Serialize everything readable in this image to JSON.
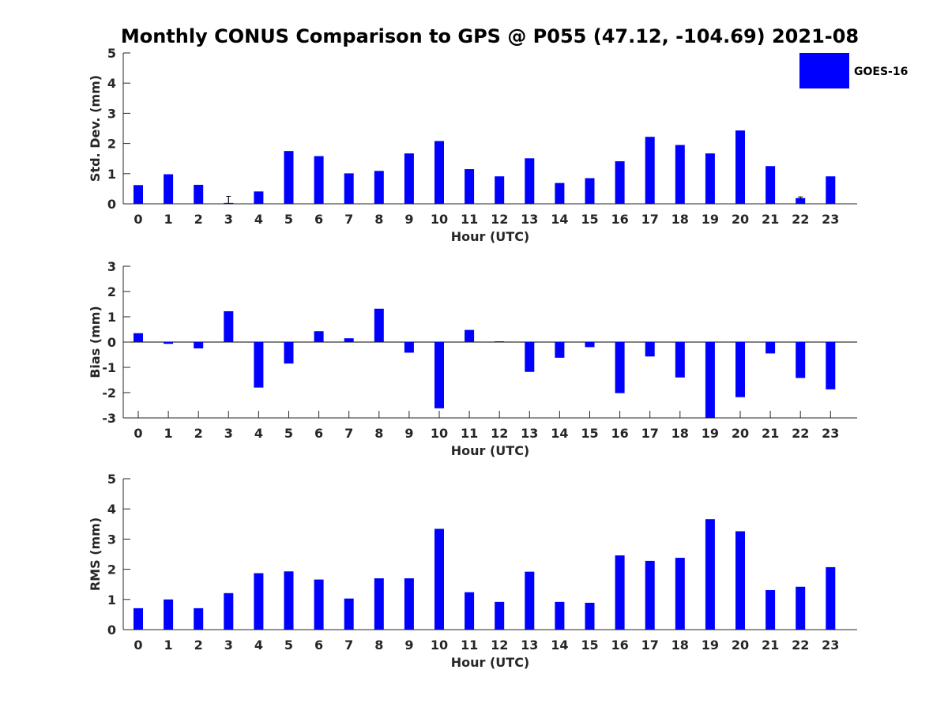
{
  "figure": {
    "title": "Monthly CONUS Comparison to GPS @ P055 (47.12, -104.69) 2021-08",
    "legend": {
      "label": "GOES-16",
      "color": "#0000ff",
      "placement": "top-right"
    }
  },
  "chart_data": [
    {
      "type": "bar",
      "xlabel": "Hour (UTC)",
      "ylabel": "Std. Dev. (mm)",
      "ylim": [
        0,
        5
      ],
      "yticks": [
        0,
        1,
        2,
        3,
        4,
        5
      ],
      "categories": [
        "0",
        "1",
        "2",
        "3",
        "4",
        "5",
        "6",
        "7",
        "8",
        "9",
        "10",
        "11",
        "12",
        "13",
        "14",
        "15",
        "16",
        "17",
        "18",
        "19",
        "20",
        "21",
        "22",
        "23"
      ],
      "series": [
        {
          "name": "GOES-16",
          "color": "#0000ff",
          "values": [
            0.62,
            0.98,
            0.63,
            0.03,
            0.41,
            1.75,
            1.58,
            1.01,
            1.09,
            1.67,
            2.08,
            1.15,
            0.91,
            1.51,
            0.69,
            0.85,
            1.41,
            2.22,
            1.95,
            1.67,
            2.43,
            1.25,
            0.19,
            0.91
          ]
        }
      ],
      "error_bars": [
        {
          "category": "3",
          "half_width": 0.22
        },
        {
          "category": "22",
          "half_width": 0.04
        }
      ],
      "grid": false
    },
    {
      "type": "bar",
      "xlabel": "Hour (UTC)",
      "ylabel": "Bias (mm)",
      "ylim": [
        -3,
        3
      ],
      "yticks": [
        -3,
        -2,
        -1,
        0,
        1,
        2,
        3
      ],
      "zero_line": true,
      "categories": [
        "0",
        "1",
        "2",
        "3",
        "4",
        "5",
        "6",
        "7",
        "8",
        "9",
        "10",
        "11",
        "12",
        "13",
        "14",
        "15",
        "16",
        "17",
        "18",
        "19",
        "20",
        "21",
        "22",
        "23"
      ],
      "series": [
        {
          "name": "GOES-16",
          "color": "#0000ff",
          "values": [
            0.35,
            -0.07,
            -0.25,
            1.22,
            -1.8,
            -0.85,
            0.43,
            0.15,
            1.32,
            -0.42,
            -2.62,
            0.48,
            0.03,
            -1.18,
            -0.62,
            -0.2,
            -2.02,
            -0.57,
            -1.4,
            -3.0,
            -2.18,
            -0.45,
            -1.42,
            -1.87
          ]
        }
      ],
      "grid": false
    },
    {
      "type": "bar",
      "xlabel": "Hour (UTC)",
      "ylabel": "RMS (mm)",
      "ylim": [
        0,
        5
      ],
      "yticks": [
        0,
        1,
        2,
        3,
        4,
        5
      ],
      "categories": [
        "0",
        "1",
        "2",
        "3",
        "4",
        "5",
        "6",
        "7",
        "8",
        "9",
        "10",
        "11",
        "12",
        "13",
        "14",
        "15",
        "16",
        "17",
        "18",
        "19",
        "20",
        "21",
        "22",
        "23"
      ],
      "series": [
        {
          "name": "GOES-16",
          "color": "#0000ff",
          "values": [
            0.71,
            1.0,
            0.71,
            1.21,
            1.87,
            1.93,
            1.66,
            1.03,
            1.7,
            1.7,
            3.34,
            1.24,
            0.92,
            1.92,
            0.92,
            0.89,
            2.46,
            2.28,
            2.38,
            3.66,
            3.26,
            1.31,
            1.42,
            2.07
          ]
        }
      ],
      "grid": false
    }
  ]
}
